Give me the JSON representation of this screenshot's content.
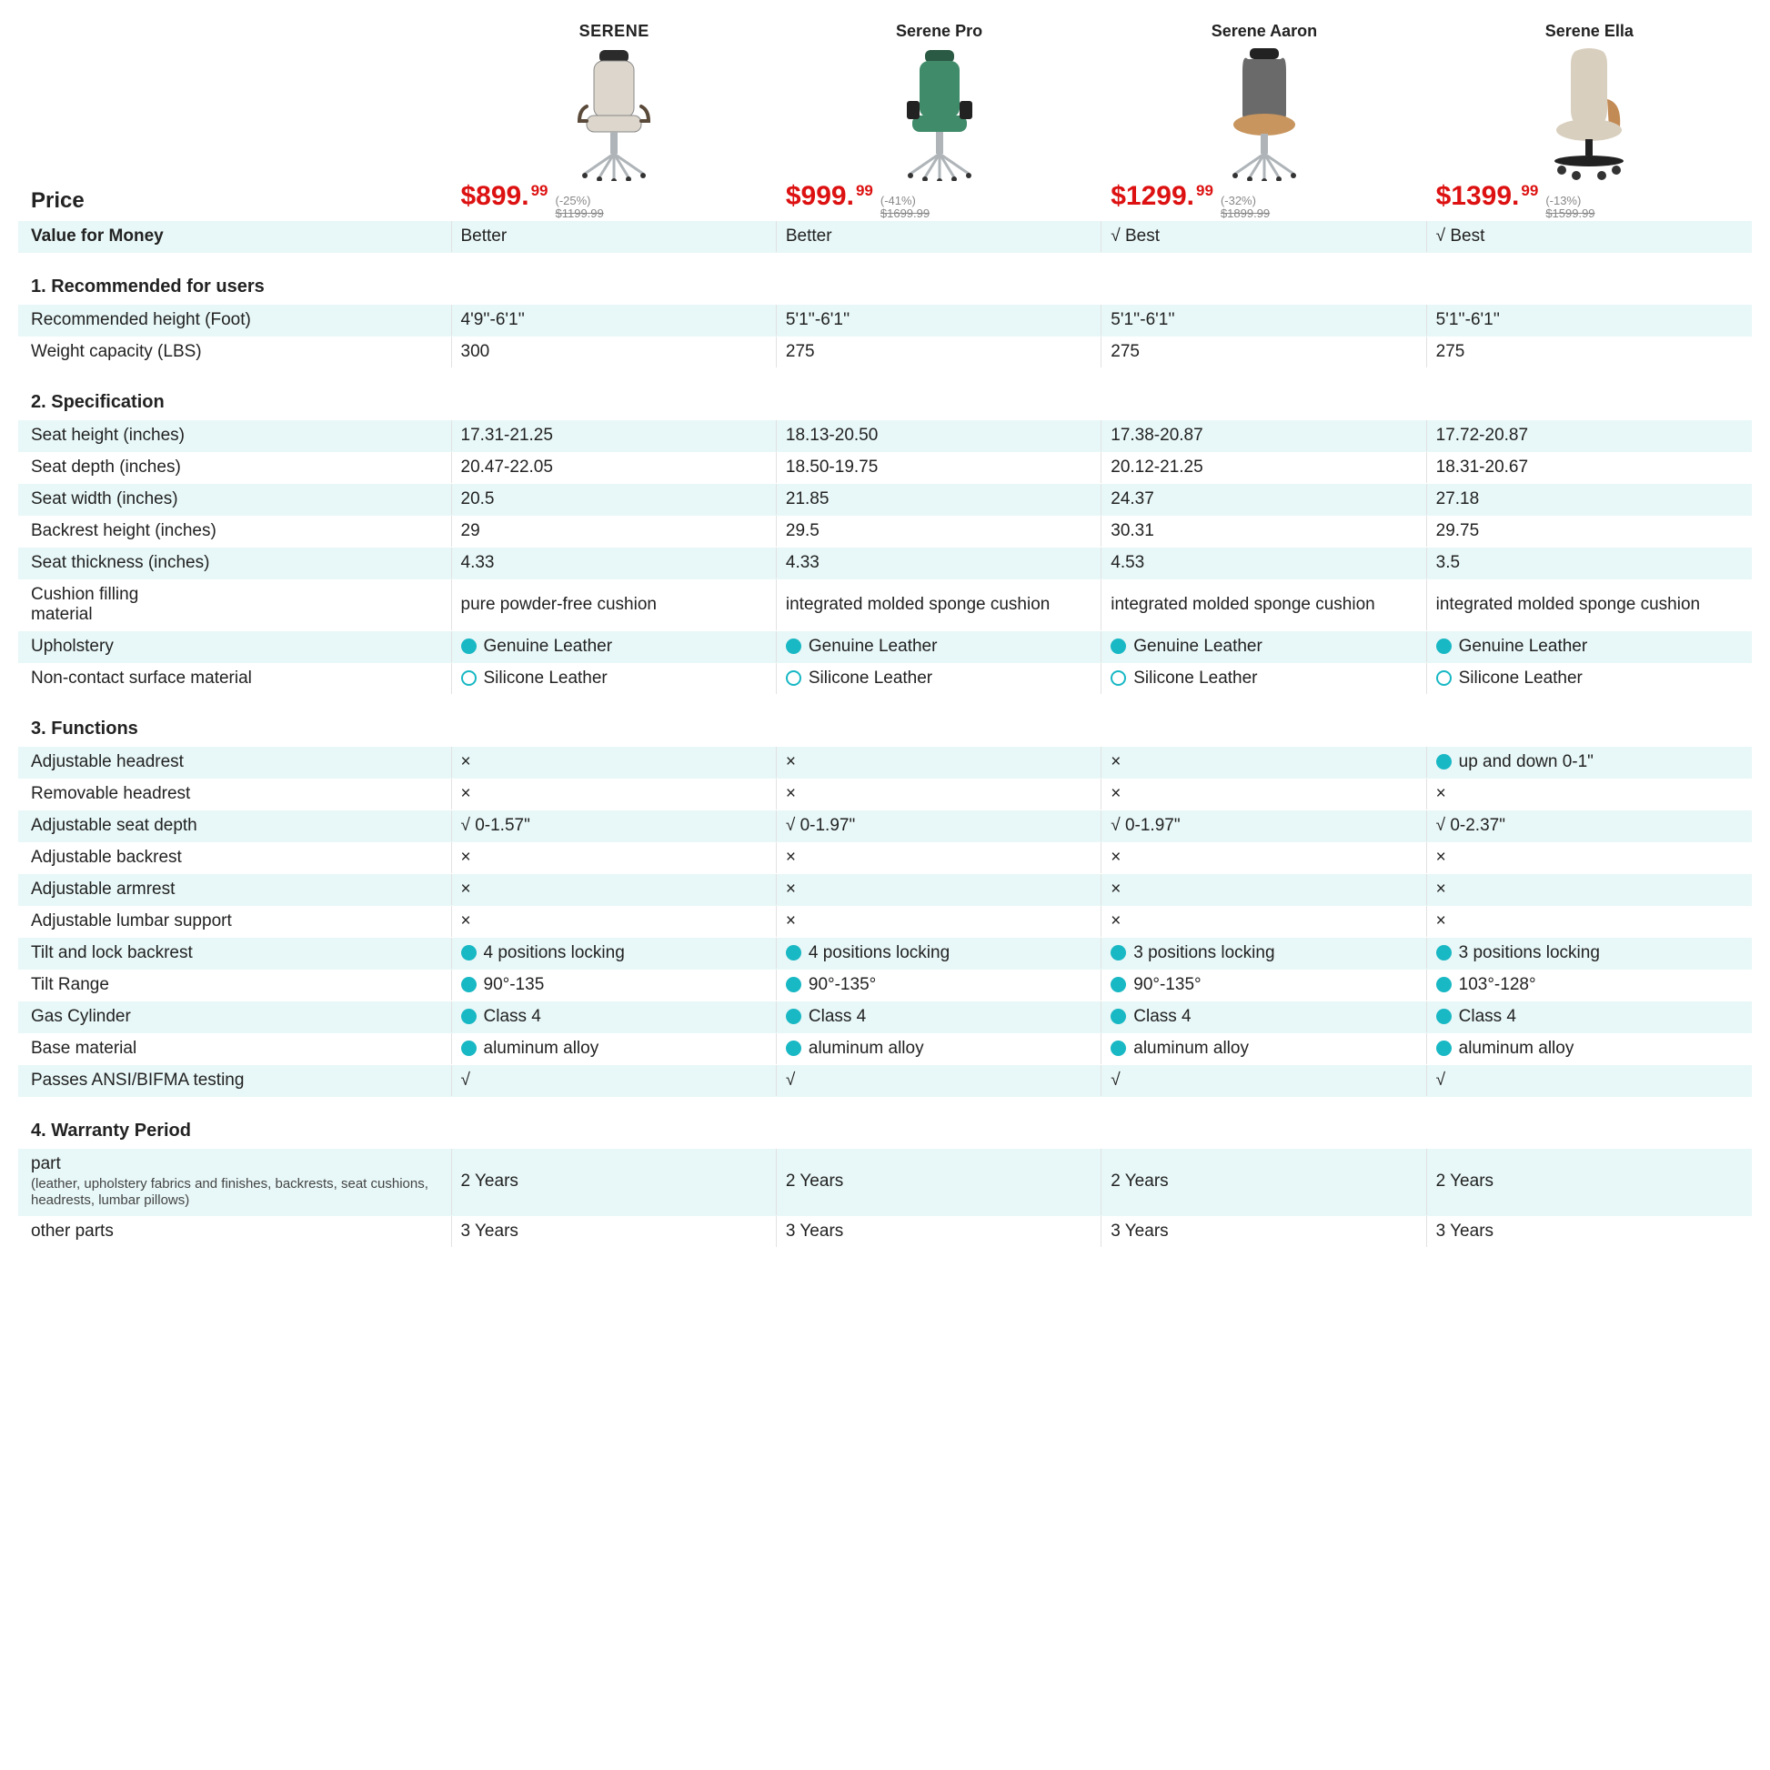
{
  "colors": {
    "price": "#d11a1a",
    "stripe": "#e8f7f7",
    "dot": "#18b8c4",
    "border": "#e2e2e2",
    "muted": "#888888"
  },
  "products": [
    {
      "name": "SERENE",
      "caps": true,
      "chair_color": "#dcd6cc"
    },
    {
      "name": "Serene Pro",
      "caps": false,
      "chair_color": "#3f8b6a"
    },
    {
      "name": "Serene Aaron",
      "caps": false,
      "chair_color": "#5a5a5a"
    },
    {
      "name": "Serene Ella",
      "caps": false,
      "chair_color": "#d9cfbf"
    }
  ],
  "price_label": "Price",
  "prices": [
    {
      "main": "$899.",
      "cents": "99",
      "discount": "(-25%)",
      "original": "$1199.99"
    },
    {
      "main": "$999.",
      "cents": "99",
      "discount": "(-41%)",
      "original": "$1699.99"
    },
    {
      "main": "$1299.",
      "cents": "99",
      "discount": "(-32%)",
      "original": "$1899.99"
    },
    {
      "main": "$1399.",
      "cents": "99",
      "discount": "(-13%)",
      "original": "$1599.99"
    }
  ],
  "value_row": {
    "label": "Value for Money",
    "values": [
      "Better",
      "Better",
      "√ Best",
      "√ Best"
    ],
    "striped": true
  },
  "sections": [
    {
      "title": "1. Recommended for users",
      "rows": [
        {
          "label": "Recommended height (Foot)",
          "values": [
            "4'9''-6'1''",
            "5'1''-6'1''",
            "5'1''-6'1''",
            "5'1''-6'1''"
          ],
          "striped": true
        },
        {
          "label": "Weight capacity (LBS)",
          "values": [
            "300",
            "275",
            "275",
            "275"
          ],
          "striped": false
        }
      ]
    },
    {
      "title": "2. Specification",
      "rows": [
        {
          "label": "Seat height (inches)",
          "values": [
            "17.31-21.25",
            "18.13-20.50",
            "17.38-20.87",
            "17.72-20.87"
          ],
          "striped": true
        },
        {
          "label": "Seat depth (inches)",
          "values": [
            "20.47-22.05",
            "18.50-19.75",
            "20.12-21.25",
            "18.31-20.67"
          ],
          "striped": false
        },
        {
          "label": "Seat width (inches)",
          "values": [
            "20.5",
            "21.85",
            "24.37",
            "27.18"
          ],
          "striped": true
        },
        {
          "label": "Backrest height (inches)",
          "values": [
            "29",
            "29.5",
            "30.31",
            "29.75"
          ],
          "striped": false
        },
        {
          "label": "Seat thickness (inches)",
          "values": [
            "4.33",
            "4.33",
            "4.53",
            "3.5"
          ],
          "striped": true
        },
        {
          "label": "Cushion filling\nmaterial",
          "values": [
            "pure powder-free cushion",
            "integrated molded sponge cushion",
            "integrated molded sponge cushion",
            "integrated molded sponge cushion"
          ],
          "striped": false,
          "multiline": true
        },
        {
          "label": "Upholstery",
          "values": [
            "Genuine Leather",
            "Genuine Leather",
            "Genuine Leather",
            "Genuine Leather"
          ],
          "striped": true,
          "dot": "solid"
        },
        {
          "label": "Non-contact surface material",
          "values": [
            "Silicone Leather",
            "Silicone Leather",
            "Silicone Leather",
            "Silicone Leather"
          ],
          "striped": false,
          "dot": "hollow"
        }
      ]
    },
    {
      "title": "3. Functions",
      "rows": [
        {
          "label": "Adjustable headrest",
          "values": [
            "×",
            "×",
            "×",
            "● up and down 0-1\""
          ],
          "striped": true,
          "special_last": true
        },
        {
          "label": "Removable headrest",
          "values": [
            "×",
            "×",
            "×",
            "×"
          ],
          "striped": false
        },
        {
          "label": "Adjustable seat depth",
          "values": [
            "√ 0-1.57\"",
            "√ 0-1.97\"",
            "√ 0-1.97\"",
            "√ 0-2.37\""
          ],
          "striped": true
        },
        {
          "label": "Adjustable backrest",
          "values": [
            "×",
            "×",
            "×",
            "×"
          ],
          "striped": false
        },
        {
          "label": "Adjustable armrest",
          "values": [
            "×",
            "×",
            "×",
            "×"
          ],
          "striped": true
        },
        {
          "label": " Adjustable lumbar support",
          "values": [
            "×",
            "×",
            "×",
            "×"
          ],
          "striped": false
        },
        {
          "label": "Tilt and lock backrest",
          "values": [
            "4 positions locking",
            "4 positions locking",
            "3 positions locking",
            "3 positions locking"
          ],
          "striped": true,
          "dot": "solid"
        },
        {
          "label": "Tilt Range",
          "values": [
            "90°-135",
            "90°-135°",
            "90°-135°",
            "103°-128°"
          ],
          "striped": false,
          "dot": "solid"
        },
        {
          "label": "Gas Cylinder",
          "values": [
            "Class 4",
            "Class 4",
            "Class 4",
            "Class 4"
          ],
          "striped": true,
          "dot": "solid"
        },
        {
          "label": "Base material",
          "values": [
            "aluminum alloy",
            "aluminum alloy",
            "aluminum alloy",
            "aluminum alloy"
          ],
          "striped": false,
          "dot": "solid"
        },
        {
          "label": "Passes ANSI/BIFMA testing",
          "values": [
            "√",
            "√",
            "√",
            "√"
          ],
          "striped": true
        }
      ]
    },
    {
      "title": "4. Warranty Period",
      "rows": [
        {
          "label": "part",
          "sublabel": "(leather, upholstery fabrics and finishes, backrests, seat cushions, headrests, lumbar pillows)",
          "values": [
            "2 Years",
            "2 Years",
            "2 Years",
            "2 Years"
          ],
          "striped": true
        },
        {
          "label": "other parts",
          "values": [
            "3 Years",
            "3 Years",
            "3 Years",
            "3 Years"
          ],
          "striped": false
        }
      ]
    }
  ]
}
